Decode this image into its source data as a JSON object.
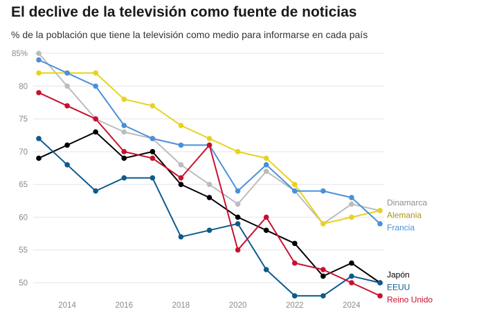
{
  "title": "El declive de la televisión como fuente de noticias",
  "subtitle": "% de la población que tiene la televisión como medio para informarse en cada país",
  "chart_data": {
    "type": "line",
    "title": "El declive de la televisión como fuente de noticias",
    "subtitle": "% de la población que tiene la televisión como medio para informarse en cada país",
    "x": [
      2013,
      2014,
      2015,
      2016,
      2017,
      2018,
      2019,
      2020,
      2021,
      2022,
      2023,
      2024,
      2025
    ],
    "x_ticks": [
      2014,
      2016,
      2018,
      2020,
      2022,
      2024
    ],
    "y_ticks": [
      50,
      55,
      60,
      65,
      70,
      75,
      80,
      85
    ],
    "y_tick_labels": [
      "50",
      "55",
      "60",
      "65",
      "70",
      "75",
      "80",
      "85%"
    ],
    "ylim": [
      47,
      85.5
    ],
    "grid": true,
    "series": [
      {
        "name": "Dinamarca",
        "color": "#bcbcbc",
        "label_color": "#8e8e8e",
        "values": [
          85,
          80,
          75,
          73,
          72,
          68,
          65,
          62,
          67,
          64,
          59,
          62,
          61
        ]
      },
      {
        "name": "Alemania",
        "color": "#e8d21d",
        "label_color": "#a8960c",
        "values": [
          82,
          82,
          82,
          78,
          77,
          74,
          72,
          70,
          69,
          65,
          59,
          60,
          61
        ]
      },
      {
        "name": "Francia",
        "color": "#4a90d9",
        "label_color": "#4a90d9",
        "values": [
          84,
          82,
          80,
          74,
          72,
          71,
          71,
          64,
          68,
          64,
          64,
          63,
          59
        ]
      },
      {
        "name": "Japón",
        "color": "#000000",
        "label_color": "#000000",
        "values": [
          69,
          71,
          73,
          69,
          70,
          65,
          63,
          60,
          58,
          56,
          51,
          53,
          50
        ]
      },
      {
        "name": "EEUU",
        "color": "#0d5a8c",
        "label_color": "#0d5a8c",
        "values": [
          72,
          68,
          64,
          66,
          66,
          57,
          58,
          59,
          52,
          48,
          48,
          51,
          50
        ]
      },
      {
        "name": "Reino Unido",
        "color": "#c8102e",
        "label_color": "#c8102e",
        "values": [
          79,
          77,
          75,
          70,
          69,
          66,
          71,
          55,
          60,
          53,
          52,
          50,
          48
        ]
      }
    ]
  }
}
